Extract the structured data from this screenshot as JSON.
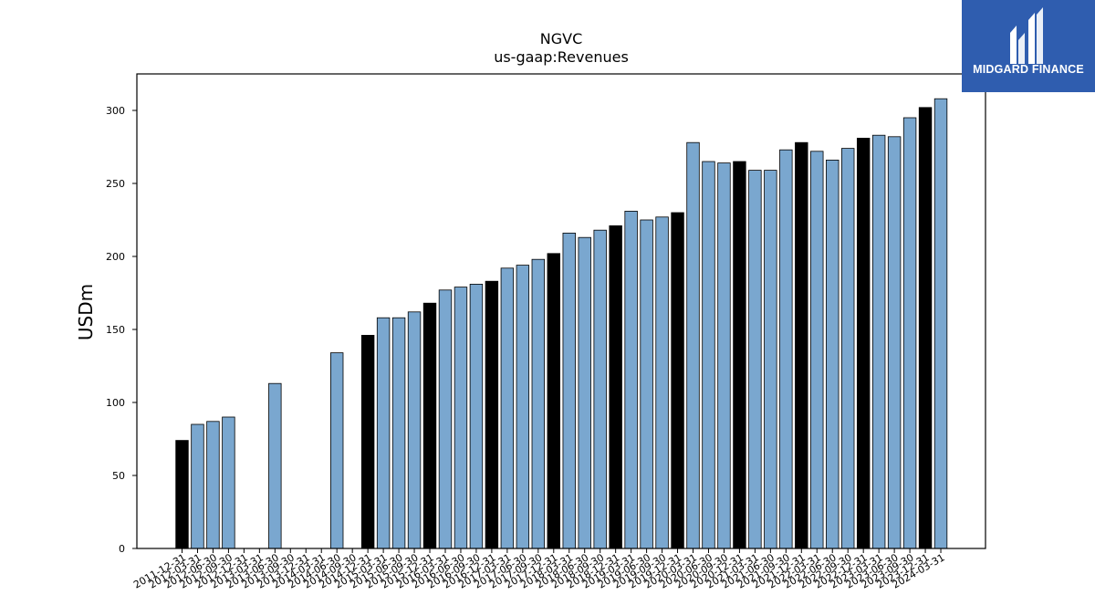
{
  "logo": {
    "text": "MIDGARD FINANCE",
    "background": "#2f5daf"
  },
  "colors": {
    "bar_regular": "#7aa7cf",
    "bar_highlight": "#000000",
    "edge": "#000000"
  },
  "chart_data": {
    "type": "bar",
    "title": "NGVC",
    "subtitle": "us-gaap:Revenues",
    "xlabel": "",
    "ylabel": "USDm",
    "ylim": [
      0,
      325
    ],
    "yticks": [
      0,
      50,
      100,
      150,
      200,
      250,
      300
    ],
    "grid": false,
    "legend": "none",
    "categories": [
      "2011-12-31",
      "2012-03-31",
      "2012-06-30",
      "2012-09-30",
      "2012-12-31",
      "2013-03-31",
      "2013-06-30",
      "2013-09-30",
      "2013-12-31",
      "2014-03-31",
      "2014-06-30",
      "2014-09-30",
      "2014-12-31",
      "2015-03-31",
      "2015-06-30",
      "2015-09-30",
      "2015-12-31",
      "2016-03-31",
      "2016-06-30",
      "2016-09-30",
      "2016-12-31",
      "2017-03-31",
      "2017-06-30",
      "2017-09-30",
      "2017-12-31",
      "2018-03-31",
      "2018-06-30",
      "2018-09-30",
      "2018-12-31",
      "2019-03-31",
      "2019-06-30",
      "2019-09-30",
      "2019-12-31",
      "2020-03-31",
      "2020-06-30",
      "2020-09-30",
      "2020-12-31",
      "2021-03-31",
      "2021-06-30",
      "2021-09-30",
      "2021-12-31",
      "2022-03-31",
      "2022-06-30",
      "2022-09-30",
      "2022-12-31",
      "2023-03-31",
      "2023-06-30",
      "2023-09-30",
      "2023-12-31",
      "2024-03-31"
    ],
    "tick_labels": [
      "2011-12-31",
      "2012-03-31",
      "2012-06-30",
      "2012-09-30",
      "2012-12-31",
      "2013-03-31",
      "2013-06-30",
      "2013-09-30",
      "2013-12-31",
      "2014-03-31",
      "2014-06-30",
      "2014-09-30",
      "2014-12-31",
      "2015-03-31",
      "2015-06-30",
      "2015-09-30",
      "2015-12-31",
      "2016-03-31",
      "2016-06-30",
      "2016-09-30",
      "2016-12-31",
      "2017-03-31",
      "2017-06-30",
      "2017-09-30",
      "2017-12-31",
      "2018-03-31",
      "2018-06-30",
      "2018-09-30",
      "2018-12-31",
      "2019-03-31",
      "2019-06-30",
      "2019-09-30",
      "2019-12-31",
      "2020-03-31",
      "2020-06-30",
      "2020-09-30",
      "2020-12-31",
      "2021-03-31",
      "2021-06-30",
      "2021-09-30",
      "2021-12-31",
      "2022-03-31",
      "2022-06-30",
      "2022-09-30",
      "2022-12-31",
      "2023-03-31",
      "2023-06-30",
      "2023-09-30",
      "2023-12-31",
      "2024-03-31"
    ],
    "values": [
      74,
      85,
      87,
      90,
      null,
      null,
      113,
      null,
      null,
      null,
      134,
      null,
      146,
      158,
      158,
      162,
      168,
      177,
      179,
      181,
      183,
      192,
      194,
      198,
      202,
      216,
      213,
      218,
      221,
      231,
      225,
      227,
      230,
      278,
      265,
      264,
      265,
      259,
      259,
      273,
      278,
      272,
      266,
      274,
      281,
      283,
      282,
      295,
      302,
      308
    ],
    "highlight": [
      true,
      false,
      false,
      false,
      false,
      false,
      false,
      false,
      false,
      false,
      false,
      false,
      true,
      false,
      false,
      false,
      true,
      false,
      false,
      false,
      true,
      false,
      false,
      false,
      true,
      false,
      false,
      false,
      true,
      false,
      false,
      false,
      true,
      false,
      false,
      false,
      true,
      false,
      false,
      false,
      true,
      false,
      false,
      false,
      true,
      false,
      false,
      false,
      true,
      false
    ]
  }
}
